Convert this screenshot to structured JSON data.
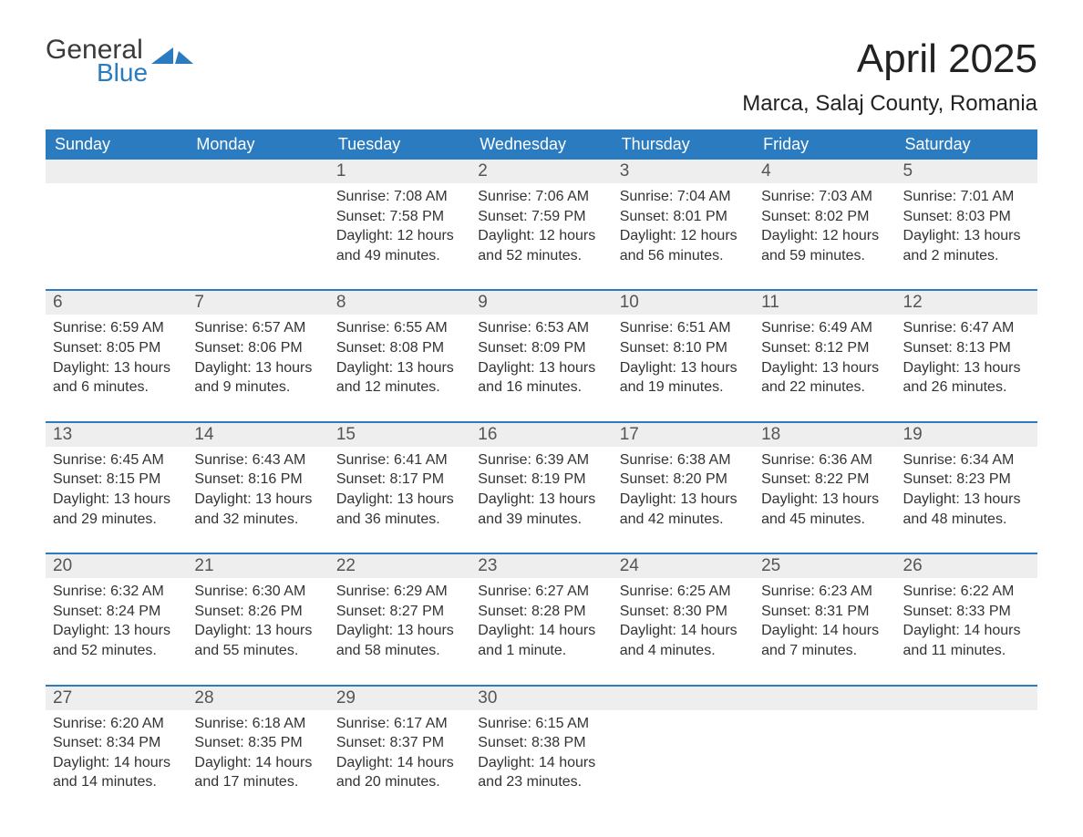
{
  "logo": {
    "text1": "General",
    "text2": "Blue",
    "text1_color": "#3a3a3a",
    "text2_color": "#2a7bbf"
  },
  "title": "April 2025",
  "subtitle": "Marca, Salaj County, Romania",
  "colors": {
    "header_bg": "#2a7bbf",
    "header_text": "#ffffff",
    "daynum_bg": "#eeeeee",
    "daynum_text": "#555555",
    "body_text": "#333333",
    "row_border": "#2a7bbf",
    "page_bg": "#ffffff"
  },
  "typography": {
    "title_fontsize": 44,
    "subtitle_fontsize": 24,
    "header_fontsize": 18,
    "daynum_fontsize": 19,
    "body_fontsize": 16,
    "font_family": "Arial"
  },
  "layout": {
    "columns": 7,
    "rows": 5
  },
  "weekdays": [
    "Sunday",
    "Monday",
    "Tuesday",
    "Wednesday",
    "Thursday",
    "Friday",
    "Saturday"
  ],
  "weeks": [
    [
      {
        "day": "",
        "sunrise": "",
        "sunset": "",
        "daylight": ""
      },
      {
        "day": "",
        "sunrise": "",
        "sunset": "",
        "daylight": ""
      },
      {
        "day": "1",
        "sunrise": "Sunrise: 7:08 AM",
        "sunset": "Sunset: 7:58 PM",
        "daylight": "Daylight: 12 hours and 49 minutes."
      },
      {
        "day": "2",
        "sunrise": "Sunrise: 7:06 AM",
        "sunset": "Sunset: 7:59 PM",
        "daylight": "Daylight: 12 hours and 52 minutes."
      },
      {
        "day": "3",
        "sunrise": "Sunrise: 7:04 AM",
        "sunset": "Sunset: 8:01 PM",
        "daylight": "Daylight: 12 hours and 56 minutes."
      },
      {
        "day": "4",
        "sunrise": "Sunrise: 7:03 AM",
        "sunset": "Sunset: 8:02 PM",
        "daylight": "Daylight: 12 hours and 59 minutes."
      },
      {
        "day": "5",
        "sunrise": "Sunrise: 7:01 AM",
        "sunset": "Sunset: 8:03 PM",
        "daylight": "Daylight: 13 hours and 2 minutes."
      }
    ],
    [
      {
        "day": "6",
        "sunrise": "Sunrise: 6:59 AM",
        "sunset": "Sunset: 8:05 PM",
        "daylight": "Daylight: 13 hours and 6 minutes."
      },
      {
        "day": "7",
        "sunrise": "Sunrise: 6:57 AM",
        "sunset": "Sunset: 8:06 PM",
        "daylight": "Daylight: 13 hours and 9 minutes."
      },
      {
        "day": "8",
        "sunrise": "Sunrise: 6:55 AM",
        "sunset": "Sunset: 8:08 PM",
        "daylight": "Daylight: 13 hours and 12 minutes."
      },
      {
        "day": "9",
        "sunrise": "Sunrise: 6:53 AM",
        "sunset": "Sunset: 8:09 PM",
        "daylight": "Daylight: 13 hours and 16 minutes."
      },
      {
        "day": "10",
        "sunrise": "Sunrise: 6:51 AM",
        "sunset": "Sunset: 8:10 PM",
        "daylight": "Daylight: 13 hours and 19 minutes."
      },
      {
        "day": "11",
        "sunrise": "Sunrise: 6:49 AM",
        "sunset": "Sunset: 8:12 PM",
        "daylight": "Daylight: 13 hours and 22 minutes."
      },
      {
        "day": "12",
        "sunrise": "Sunrise: 6:47 AM",
        "sunset": "Sunset: 8:13 PM",
        "daylight": "Daylight: 13 hours and 26 minutes."
      }
    ],
    [
      {
        "day": "13",
        "sunrise": "Sunrise: 6:45 AM",
        "sunset": "Sunset: 8:15 PM",
        "daylight": "Daylight: 13 hours and 29 minutes."
      },
      {
        "day": "14",
        "sunrise": "Sunrise: 6:43 AM",
        "sunset": "Sunset: 8:16 PM",
        "daylight": "Daylight: 13 hours and 32 minutes."
      },
      {
        "day": "15",
        "sunrise": "Sunrise: 6:41 AM",
        "sunset": "Sunset: 8:17 PM",
        "daylight": "Daylight: 13 hours and 36 minutes."
      },
      {
        "day": "16",
        "sunrise": "Sunrise: 6:39 AM",
        "sunset": "Sunset: 8:19 PM",
        "daylight": "Daylight: 13 hours and 39 minutes."
      },
      {
        "day": "17",
        "sunrise": "Sunrise: 6:38 AM",
        "sunset": "Sunset: 8:20 PM",
        "daylight": "Daylight: 13 hours and 42 minutes."
      },
      {
        "day": "18",
        "sunrise": "Sunrise: 6:36 AM",
        "sunset": "Sunset: 8:22 PM",
        "daylight": "Daylight: 13 hours and 45 minutes."
      },
      {
        "day": "19",
        "sunrise": "Sunrise: 6:34 AM",
        "sunset": "Sunset: 8:23 PM",
        "daylight": "Daylight: 13 hours and 48 minutes."
      }
    ],
    [
      {
        "day": "20",
        "sunrise": "Sunrise: 6:32 AM",
        "sunset": "Sunset: 8:24 PM",
        "daylight": "Daylight: 13 hours and 52 minutes."
      },
      {
        "day": "21",
        "sunrise": "Sunrise: 6:30 AM",
        "sunset": "Sunset: 8:26 PM",
        "daylight": "Daylight: 13 hours and 55 minutes."
      },
      {
        "day": "22",
        "sunrise": "Sunrise: 6:29 AM",
        "sunset": "Sunset: 8:27 PM",
        "daylight": "Daylight: 13 hours and 58 minutes."
      },
      {
        "day": "23",
        "sunrise": "Sunrise: 6:27 AM",
        "sunset": "Sunset: 8:28 PM",
        "daylight": "Daylight: 14 hours and 1 minute."
      },
      {
        "day": "24",
        "sunrise": "Sunrise: 6:25 AM",
        "sunset": "Sunset: 8:30 PM",
        "daylight": "Daylight: 14 hours and 4 minutes."
      },
      {
        "day": "25",
        "sunrise": "Sunrise: 6:23 AM",
        "sunset": "Sunset: 8:31 PM",
        "daylight": "Daylight: 14 hours and 7 minutes."
      },
      {
        "day": "26",
        "sunrise": "Sunrise: 6:22 AM",
        "sunset": "Sunset: 8:33 PM",
        "daylight": "Daylight: 14 hours and 11 minutes."
      }
    ],
    [
      {
        "day": "27",
        "sunrise": "Sunrise: 6:20 AM",
        "sunset": "Sunset: 8:34 PM",
        "daylight": "Daylight: 14 hours and 14 minutes."
      },
      {
        "day": "28",
        "sunrise": "Sunrise: 6:18 AM",
        "sunset": "Sunset: 8:35 PM",
        "daylight": "Daylight: 14 hours and 17 minutes."
      },
      {
        "day": "29",
        "sunrise": "Sunrise: 6:17 AM",
        "sunset": "Sunset: 8:37 PM",
        "daylight": "Daylight: 14 hours and 20 minutes."
      },
      {
        "day": "30",
        "sunrise": "Sunrise: 6:15 AM",
        "sunset": "Sunset: 8:38 PM",
        "daylight": "Daylight: 14 hours and 23 minutes."
      },
      {
        "day": "",
        "sunrise": "",
        "sunset": "",
        "daylight": ""
      },
      {
        "day": "",
        "sunrise": "",
        "sunset": "",
        "daylight": ""
      },
      {
        "day": "",
        "sunrise": "",
        "sunset": "",
        "daylight": ""
      }
    ]
  ]
}
